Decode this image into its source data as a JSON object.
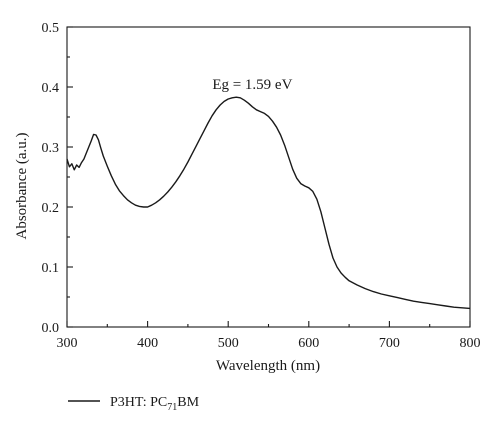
{
  "chart_data": {
    "type": "line",
    "xlabel": "Wavelength (nm)",
    "ylabel": "Absorbance (a.u.)",
    "xlim": [
      300,
      800
    ],
    "ylim": [
      0.0,
      0.5
    ],
    "x_ticks": [
      300,
      400,
      500,
      600,
      700,
      800
    ],
    "y_ticks": [
      0.0,
      0.1,
      0.2,
      0.3,
      0.4,
      0.5
    ],
    "x_tick_labels": [
      "300",
      "400",
      "500",
      "600",
      "700",
      "800"
    ],
    "y_tick_labels": [
      "0.0",
      "0.1",
      "0.2",
      "0.3",
      "0.4",
      "0.5"
    ],
    "grid": false,
    "legend_position": "bottom-left",
    "series": [
      {
        "name": "P3HT: PC71BM",
        "legend_main": "P3HT: PC",
        "legend_sub": "71",
        "legend_tail": "BM",
        "color": "#1a1a1a",
        "x": [
          300,
          303,
          306,
          309,
          312,
          315,
          318,
          321,
          324,
          327,
          330,
          333,
          336,
          339,
          342,
          345,
          350,
          355,
          360,
          365,
          370,
          375,
          380,
          385,
          390,
          395,
          400,
          405,
          410,
          415,
          420,
          425,
          430,
          435,
          440,
          445,
          450,
          455,
          460,
          465,
          470,
          475,
          480,
          485,
          490,
          495,
          500,
          505,
          510,
          515,
          520,
          525,
          530,
          535,
          540,
          545,
          550,
          555,
          560,
          565,
          570,
          575,
          580,
          585,
          590,
          595,
          600,
          605,
          610,
          615,
          620,
          625,
          630,
          635,
          640,
          645,
          650,
          660,
          670,
          680,
          690,
          700,
          710,
          720,
          730,
          740,
          750,
          760,
          770,
          780,
          790,
          800
        ],
        "values": [
          0.28,
          0.267,
          0.272,
          0.262,
          0.27,
          0.266,
          0.274,
          0.28,
          0.29,
          0.3,
          0.31,
          0.321,
          0.32,
          0.312,
          0.298,
          0.285,
          0.268,
          0.252,
          0.238,
          0.227,
          0.219,
          0.212,
          0.207,
          0.203,
          0.201,
          0.2,
          0.2,
          0.203,
          0.207,
          0.212,
          0.218,
          0.225,
          0.233,
          0.242,
          0.252,
          0.263,
          0.275,
          0.288,
          0.301,
          0.314,
          0.327,
          0.34,
          0.352,
          0.362,
          0.37,
          0.376,
          0.38,
          0.382,
          0.383,
          0.382,
          0.378,
          0.373,
          0.367,
          0.362,
          0.359,
          0.356,
          0.351,
          0.343,
          0.333,
          0.32,
          0.303,
          0.283,
          0.263,
          0.248,
          0.239,
          0.235,
          0.232,
          0.226,
          0.213,
          0.192,
          0.165,
          0.138,
          0.115,
          0.1,
          0.09,
          0.083,
          0.077,
          0.07,
          0.064,
          0.059,
          0.055,
          0.052,
          0.049,
          0.046,
          0.043,
          0.041,
          0.039,
          0.037,
          0.035,
          0.033,
          0.032,
          0.031
        ]
      }
    ],
    "annotations": [
      {
        "text": "Eg = 1.59 eV",
        "x": 530,
        "y": 0.397
      }
    ]
  }
}
